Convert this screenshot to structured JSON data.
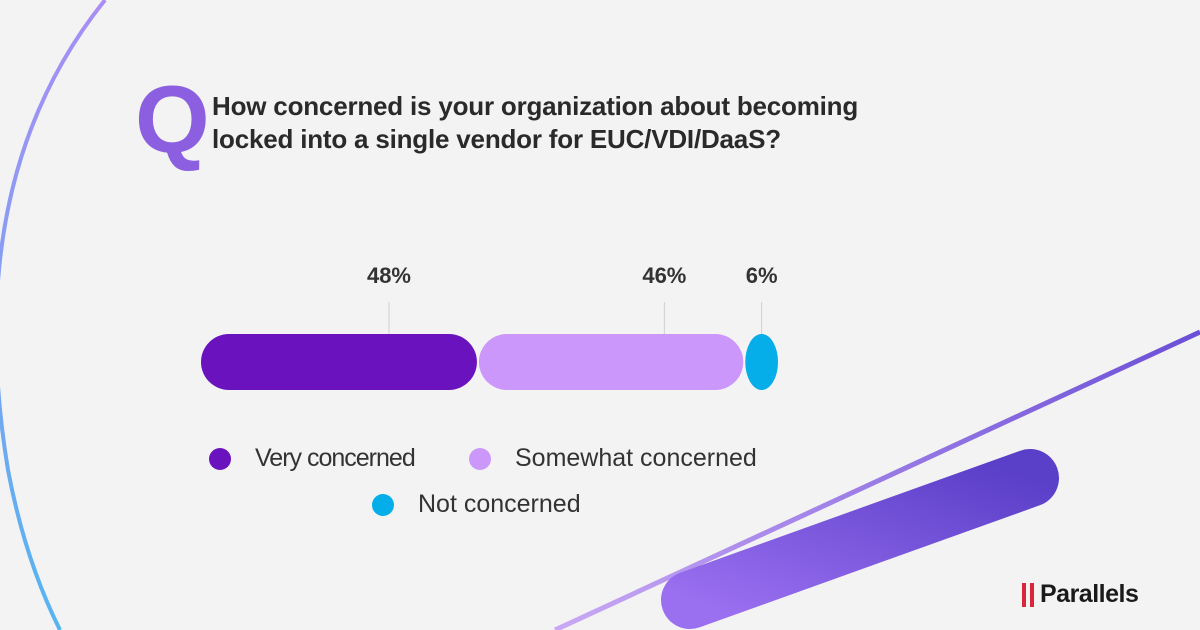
{
  "question_mark": "Q",
  "title_line1": "How concerned is your organization about becoming",
  "title_line2": "locked into a single vendor for EUC/VDI/DaaS?",
  "chart_data": {
    "type": "bar",
    "orientation": "horizontal-stacked",
    "categories": [
      "Very concerned",
      "Somewhat concerned",
      "Not concerned"
    ],
    "values": [
      48,
      46,
      6
    ],
    "labels": [
      "48%",
      "46%",
      "6%"
    ],
    "colors": [
      "#6a12bd",
      "#cb97fa",
      "#05aee8"
    ],
    "legend_placement": "bottom",
    "grid": false
  },
  "brand": {
    "name": "Parallels",
    "color": "#d9263a"
  }
}
